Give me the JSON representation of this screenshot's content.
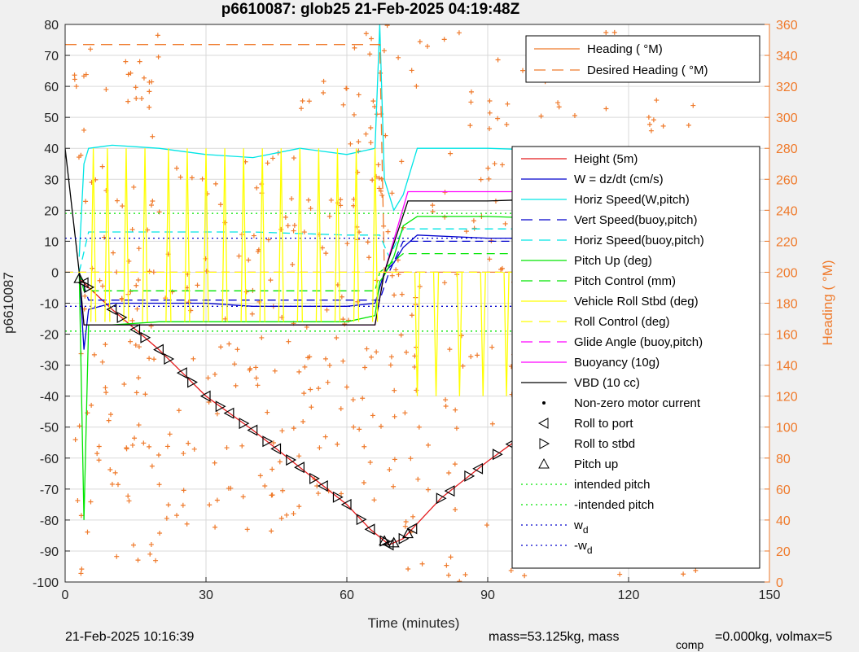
{
  "chart_data": {
    "type": "line",
    "title": "p6610087: glob25 21-Feb-2025 04:19:48Z",
    "xlabel": "Time (minutes)",
    "ylabel_left": "p6610087",
    "ylabel_right": "Heading (  °M)",
    "xlim": [
      0,
      150
    ],
    "ylim_left": [
      -100,
      80
    ],
    "ylim_right": [
      0,
      360
    ],
    "x_ticks": [
      "0",
      "30",
      "60",
      "90",
      "120",
      "150"
    ],
    "y_ticks_left": [
      "80",
      "70",
      "60",
      "50",
      "40",
      "30",
      "20",
      "10",
      "0",
      "-10",
      "-20",
      "-30",
      "-40",
      "-50",
      "-60",
      "-70",
      "-80",
      "-90",
      "-100"
    ],
    "y_ticks_right": [
      "360",
      "340",
      "320",
      "300",
      "280",
      "260",
      "240",
      "220",
      "200",
      "180",
      "160",
      "140",
      "120",
      "100",
      "80",
      "60",
      "40",
      "20",
      "0"
    ],
    "grid": true,
    "footer_left": "21-Feb-2025 10:16:39",
    "footer_right": "mass=53.125kg, mass",
    "footer_sub": "comp",
    "footer_right2": "=0.000kg, volmax=5",
    "legend_heading": [
      {
        "label": "Heading (  °M)",
        "color": "#ef7a2b",
        "style": "solid"
      },
      {
        "label": "Desired Heading (   °M)",
        "color": "#ef7a2b",
        "style": "dashed"
      }
    ],
    "legend_main": [
      {
        "label": "Height (5m)",
        "color": "#e41a1c",
        "style": "solid"
      },
      {
        "label": "W = dz/dt (cm/s)",
        "color": "#0000cc",
        "style": "solid"
      },
      {
        "label": "Horiz Speed(W,pitch)",
        "color": "#00e5e5",
        "style": "solid"
      },
      {
        "label": "Vert Speed(buoy,pitch)",
        "color": "#0000cc",
        "style": "dashed"
      },
      {
        "label": "Horiz Speed(buoy,pitch)",
        "color": "#00e5e5",
        "style": "dashed"
      },
      {
        "label": "Pitch Up (deg)",
        "color": "#00e500",
        "style": "solid"
      },
      {
        "label": "Pitch Control (mm)",
        "color": "#00e500",
        "style": "dashed"
      },
      {
        "label": "Vehicle Roll Stbd (deg)",
        "color": "#ffff00",
        "style": "solid"
      },
      {
        "label": "Roll Control (deg)",
        "color": "#ffff00",
        "style": "dashed"
      },
      {
        "label": "Glide Angle (buoy,pitch)",
        "color": "#ff00ff",
        "style": "dashed"
      },
      {
        "label": "Buoyancy (10g)",
        "color": "#ff00ff",
        "style": "solid"
      },
      {
        "label": "VBD (10 cc)",
        "color": "#000000",
        "style": "solid"
      },
      {
        "label": "Non-zero motor current",
        "color": "#000000",
        "style": "dot"
      },
      {
        "label": "Roll to port",
        "color": "#000000",
        "style": "tri-left"
      },
      {
        "label": "Roll to stbd",
        "color": "#000000",
        "style": "tri-right"
      },
      {
        "label": "Pitch up",
        "color": "#000000",
        "style": "tri-up"
      },
      {
        "label": "intended pitch",
        "color": "#00e500",
        "style": "dotted"
      },
      {
        "label": "-intended pitch",
        "color": "#00e500",
        "style": "dotted"
      },
      {
        "label": "w",
        "sub": "d",
        "color": "#0000cc",
        "style": "dotted"
      },
      {
        "label": "-w",
        "sub": "d",
        "color": "#0000cc",
        "style": "dotted"
      }
    ],
    "series": [
      {
        "name": "Height (5m)",
        "color": "#e41a1c",
        "axis": "left",
        "x": [
          3,
          10,
          20,
          30,
          40,
          50,
          60,
          65,
          69,
          72,
          80,
          90,
          100,
          110,
          120,
          130,
          137
        ],
        "y": [
          -2,
          -12,
          -25,
          -40,
          -51,
          -63,
          -75,
          -83,
          -88,
          -86,
          -73,
          -61,
          -50,
          -36,
          -23,
          -9,
          0
        ]
      },
      {
        "name": "W = dz/dt (cm/s)",
        "color": "#0000cc",
        "axis": "left",
        "x": [
          3,
          4,
          5,
          10,
          20,
          30,
          40,
          50,
          60,
          66,
          68,
          70,
          72,
          75,
          90,
          110,
          125,
          137
        ],
        "y": [
          0,
          -25,
          -12,
          -10,
          -10,
          -10,
          -11,
          -11,
          -11,
          -10,
          0,
          3,
          8,
          12,
          11,
          11,
          12,
          12
        ]
      },
      {
        "name": "Horiz Speed(W,pitch)",
        "color": "#00e5e5",
        "axis": "left",
        "x": [
          3,
          4,
          5,
          10,
          20,
          30,
          40,
          50,
          60,
          66,
          67,
          68,
          70,
          72,
          75,
          90,
          110,
          125,
          137
        ],
        "y": [
          5,
          35,
          40,
          41,
          40,
          38,
          37,
          40,
          38,
          40,
          80,
          30,
          20,
          25,
          40,
          40,
          39,
          40,
          40
        ]
      },
      {
        "name": "Vert Speed(buoy,pitch)",
        "color": "#0000cc",
        "axis": "left",
        "dash": "10,6",
        "x": [
          3,
          5,
          20,
          40,
          60,
          67,
          69,
          72,
          90,
          110,
          137
        ],
        "y": [
          0,
          -9,
          -9,
          -9,
          -9,
          -9,
          0,
          10,
          10,
          10,
          10
        ]
      },
      {
        "name": "Horiz Speed(buoy,pitch)",
        "color": "#00e5e5",
        "axis": "left",
        "dash": "10,6",
        "x": [
          3,
          5,
          20,
          40,
          60,
          67,
          69,
          72,
          90,
          110,
          137
        ],
        "y": [
          0,
          13,
          13,
          13,
          12,
          12,
          5,
          14,
          14,
          14,
          14
        ]
      },
      {
        "name": "Pitch Up (deg)",
        "color": "#00e500",
        "axis": "left",
        "x": [
          3,
          4,
          5,
          10,
          20,
          40,
          60,
          66,
          67,
          68,
          70,
          72,
          75,
          90,
          110,
          125,
          137
        ],
        "y": [
          0,
          -80,
          -17,
          -17,
          -16,
          -16,
          -16,
          -14,
          -3,
          -1,
          5,
          15,
          18,
          18,
          17,
          18,
          18
        ]
      },
      {
        "name": "Pitch Control (mm)",
        "color": "#00e500",
        "axis": "left",
        "dash": "10,6",
        "x": [
          3,
          4,
          20,
          40,
          66,
          67,
          72,
          90,
          137
        ],
        "y": [
          0,
          -6,
          -6,
          -6,
          -6,
          0,
          6,
          6,
          6
        ]
      },
      {
        "name": "Glide Angle (buoy,pitch)",
        "color": "#ff00ff",
        "axis": "left",
        "dash": "10,6",
        "x": [
          0,
          137
        ],
        "y": [
          0,
          0
        ]
      },
      {
        "name": "Buoyancy (10g)",
        "color": "#ff00ff",
        "axis": "left",
        "x": [
          3,
          4,
          20,
          40,
          60,
          66,
          68,
          73,
          90,
          110,
          125,
          130,
          137
        ],
        "y": [
          0,
          -17,
          -17,
          -17,
          -17,
          -17,
          0,
          26,
          26,
          26,
          27,
          29,
          31
        ]
      },
      {
        "name": "VBD (10 cc)",
        "color": "#000000",
        "axis": "left",
        "x": [
          0,
          3,
          4,
          20,
          40,
          60,
          66,
          68,
          73,
          90,
          110,
          125,
          130,
          137
        ],
        "y": [
          40,
          0,
          -17,
          -17,
          -17,
          -17,
          -17,
          0,
          23,
          23,
          24,
          25,
          28,
          30
        ]
      },
      {
        "name": "intended pitch",
        "color": "#00e500",
        "axis": "left",
        "dash": "2,4",
        "x": [
          0,
          137
        ],
        "y": [
          19,
          19
        ]
      },
      {
        "name": "-intended pitch",
        "color": "#00e500",
        "axis": "left",
        "dash": "2,4",
        "x": [
          0,
          137
        ],
        "y": [
          -19,
          -19
        ]
      },
      {
        "name": "w_d",
        "color": "#0000cc",
        "axis": "left",
        "dash": "2,4",
        "x": [
          0,
          137
        ],
        "y": [
          11,
          11
        ]
      },
      {
        "name": "-w_d",
        "color": "#0000cc",
        "axis": "left",
        "dash": "2,4",
        "x": [
          0,
          137
        ],
        "y": [
          -11,
          -11
        ]
      },
      {
        "name": "Desired Heading",
        "color": "#ef7a2b",
        "axis": "right",
        "dash": "14,8",
        "x": [
          0,
          67,
          68,
          70,
          137
        ],
        "y": [
          347,
          347,
          200,
          200,
          200
        ]
      },
      {
        "name": "Roll Control (deg)",
        "color": "#ffff00",
        "axis": "left",
        "dash": "10,6",
        "x": [
          0,
          137
        ],
        "y": [
          0,
          0
        ]
      }
    ],
    "roll_spikes": {
      "name": "Vehicle Roll Stbd (deg)",
      "color": "#ffff00",
      "up_x": [
        6,
        9,
        13,
        17,
        22,
        26,
        30,
        34,
        38,
        42,
        46,
        50,
        54,
        58,
        62,
        66
      ],
      "up_y": 40,
      "down_x": [
        75,
        79,
        84,
        89,
        94,
        99,
        104,
        109,
        114,
        118,
        123,
        128,
        133,
        137
      ],
      "down_y": -40
    },
    "heading_clusters_deg": [
      {
        "x0": 2,
        "x1": 20,
        "y0": 5,
        "y1": 355
      },
      {
        "x0": 20,
        "x1": 50,
        "y0": 30,
        "y1": 280
      },
      {
        "x0": 50,
        "x1": 70,
        "y0": 50,
        "y1": 360
      },
      {
        "x0": 70,
        "x1": 100,
        "y0": 0,
        "y1": 360
      },
      {
        "x0": 100,
        "x1": 137,
        "y0": 0,
        "y1": 360
      }
    ],
    "markers": {
      "roll_port_x": [
        4,
        10,
        15,
        20,
        25,
        30,
        35,
        40,
        45,
        50,
        55,
        60,
        65,
        69,
        74,
        82,
        88,
        95,
        103,
        110,
        117,
        124,
        131,
        136
      ],
      "roll_stbd_x": [
        5,
        12,
        17,
        22,
        27,
        33,
        38,
        43,
        48,
        53,
        58,
        63,
        68,
        72,
        80,
        86,
        92,
        99,
        107,
        114,
        121,
        128,
        134,
        137
      ],
      "pitch_up_x": [
        3,
        68,
        70,
        73,
        99,
        104,
        115,
        123,
        130,
        135,
        137
      ]
    }
  }
}
